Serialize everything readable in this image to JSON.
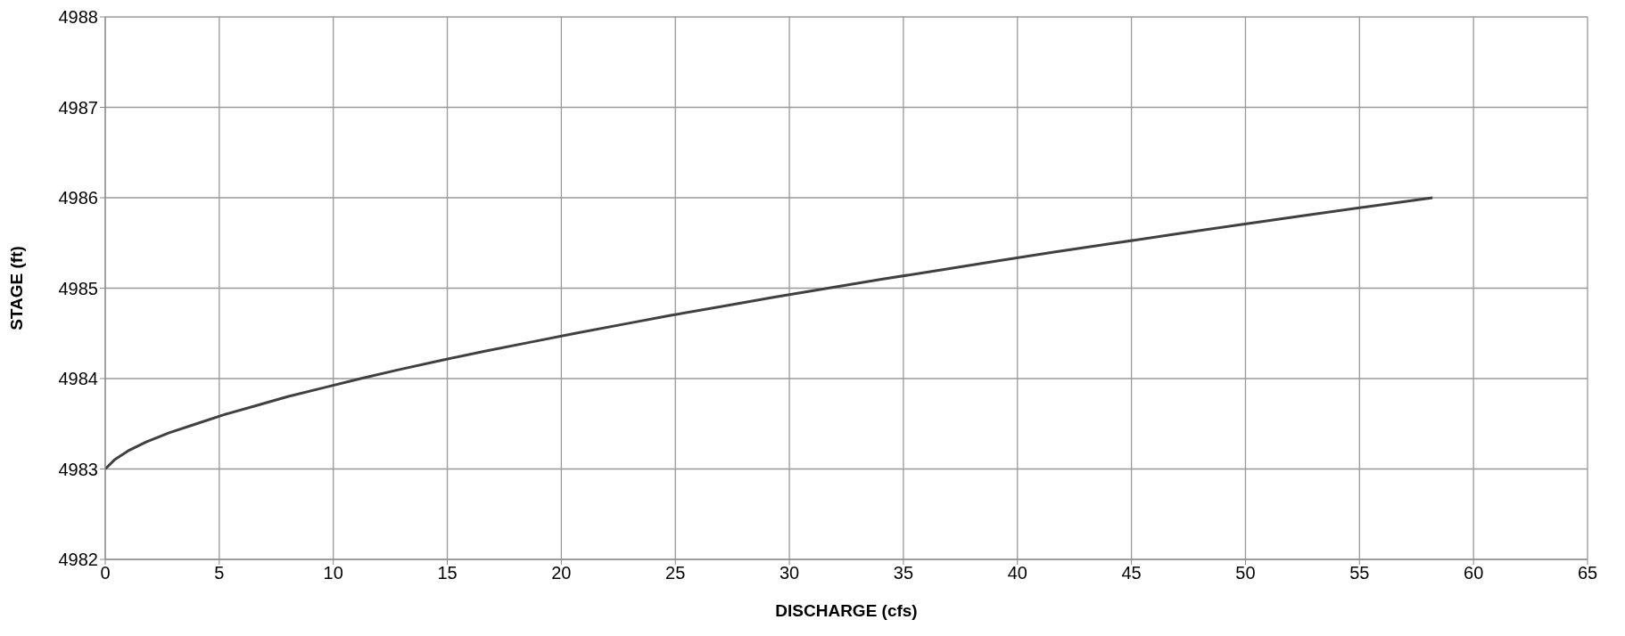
{
  "chart_data": {
    "type": "line",
    "xlabel": "DISCHARGE (cfs)",
    "ylabel": "STAGE (ft)",
    "x": [
      0,
      0.4,
      1.0,
      1.8,
      2.8,
      4.0,
      5.2,
      6.6,
      8.0,
      9.6,
      11.2,
      12.9,
      14.7,
      16.6,
      18.6,
      20.6,
      22.7,
      24.8,
      27.1,
      29.3,
      31.7,
      34.1,
      36.6,
      39.1,
      41.6,
      44.3,
      47.0,
      49.7,
      52.5,
      55.3,
      58.2
    ],
    "series": [
      {
        "color": "#404040",
        "values": [
          4983,
          4983.1,
          4983.2,
          4983.3,
          4983.4,
          4983.5,
          4983.6,
          4983.7,
          4983.8,
          4983.9,
          4984,
          4984.1,
          4984.2,
          4984.3,
          4984.4,
          4984.5,
          4984.6,
          4984.7,
          4984.8,
          4984.9,
          4985,
          4985.1,
          4985.2,
          4985.3,
          4985.4,
          4985.5,
          4985.6,
          4985.7,
          4985.8,
          4985.9,
          4986
        ]
      }
    ],
    "xlim": [
      0,
      65
    ],
    "xticks": [
      0,
      5,
      10,
      15,
      20,
      25,
      30,
      35,
      40,
      45,
      50,
      55,
      60,
      65
    ],
    "ylim": [
      4982,
      4988
    ],
    "yticks": [
      4982,
      4983,
      4984,
      4985,
      4986,
      4987,
      4988
    ],
    "grid": true,
    "legend": false,
    "marker": "none",
    "line_style": "solid"
  }
}
